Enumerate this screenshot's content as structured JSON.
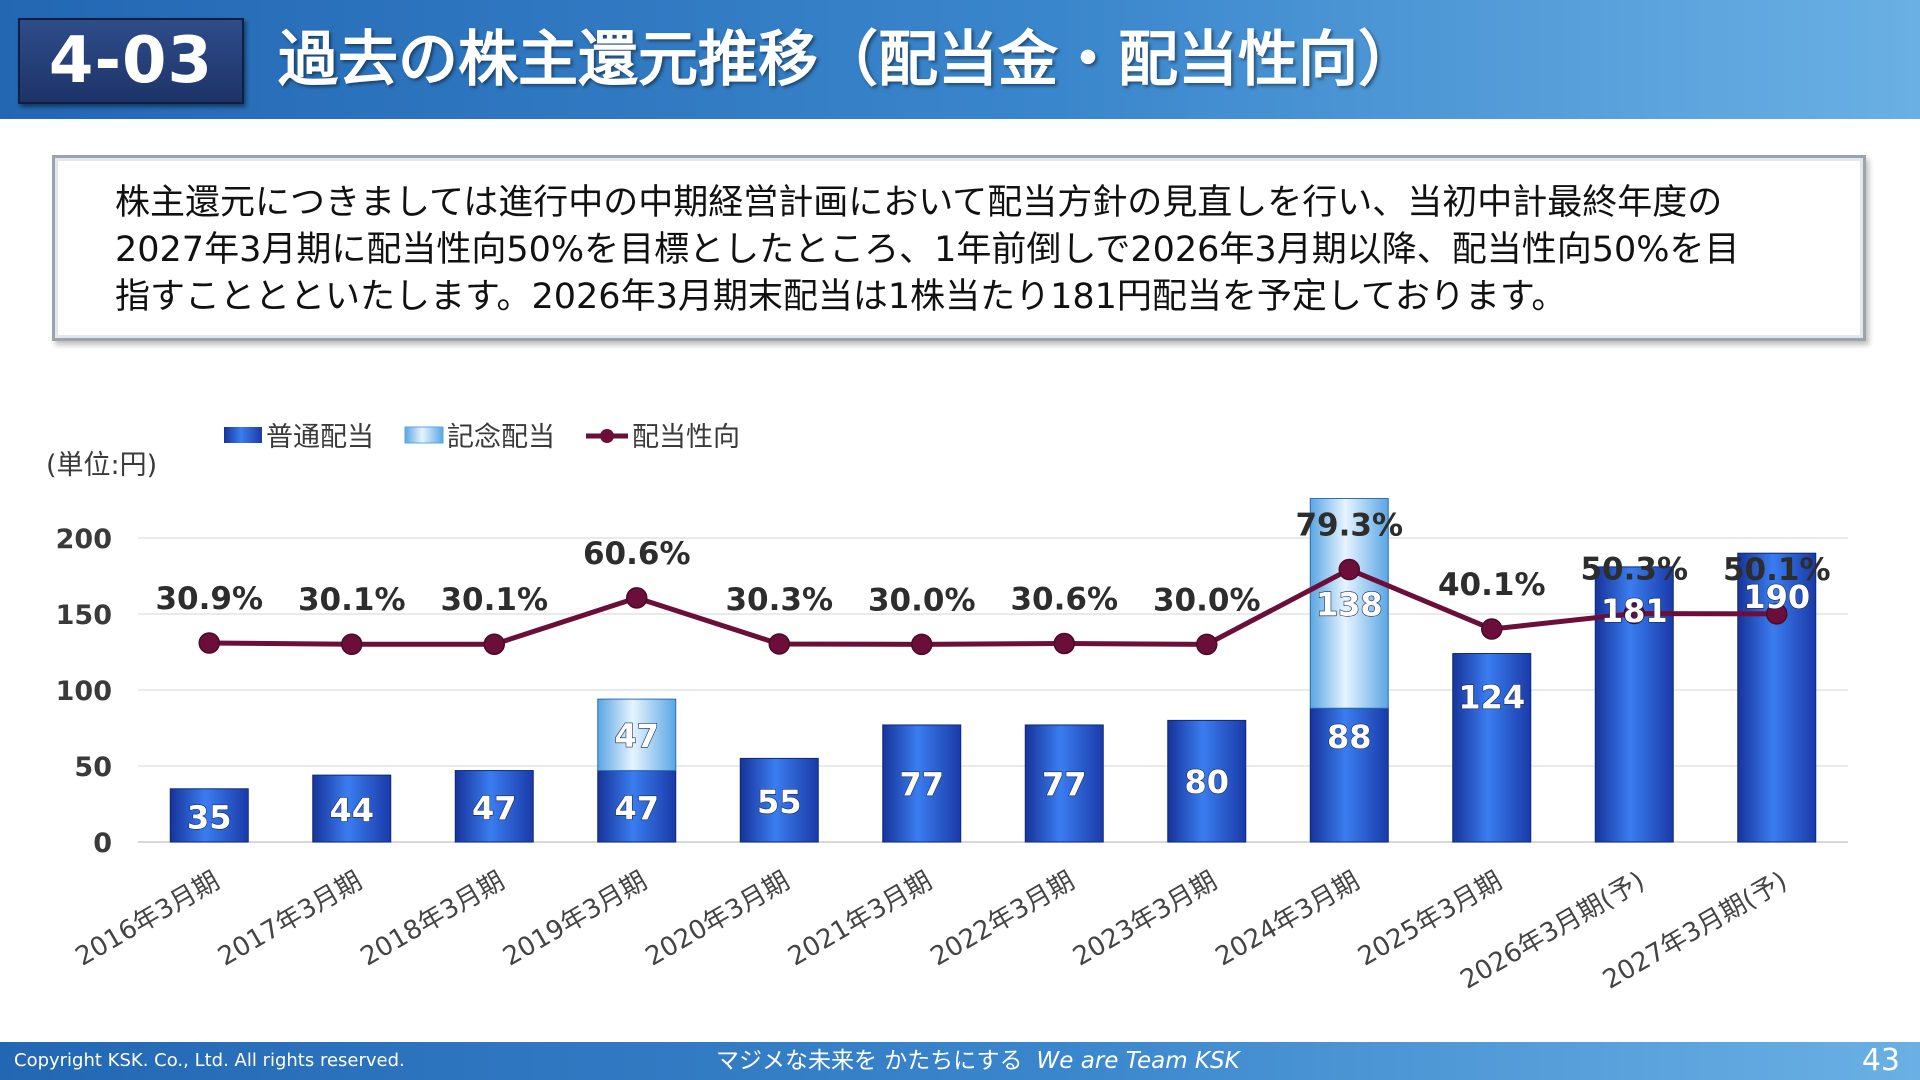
{
  "header": {
    "section": "4-03",
    "title": "過去の株主還元推移（配当金・配当性向）"
  },
  "summary": [
    "株主還元につきましては進行中の中期経営計画において配当方針の見直しを行い、当初中計最終年度の",
    "2027年3月期に配当性向50%を目標としたところ、1年前倒しで2026年3月期以降、配当性向50%を目",
    "指すこととといたします。2026年3月期末配当は1株当たり181円配当を予定しております。"
  ],
  "chart_data": {
    "type": "bar",
    "unit_label": "(単位:円)",
    "legend_position": "top-left",
    "categories": [
      "2016年3月期",
      "2017年3月期",
      "2018年3月期",
      "2019年3月期",
      "2020年3月期",
      "2021年3月期",
      "2022年3月期",
      "2023年3月期",
      "2024年3月期",
      "2025年3月期",
      "2026年3月期(予)",
      "2027年3月期(予)"
    ],
    "series": [
      {
        "name": "普通配当",
        "type": "bar",
        "stacked": true,
        "color": "#1f4fd6",
        "values": [
          35,
          44,
          47,
          47,
          55,
          77,
          77,
          80,
          88,
          124,
          181,
          190
        ],
        "labels": [
          "35",
          "44",
          "47",
          "47",
          "55",
          "77",
          "77",
          "80",
          "88",
          "124",
          "181",
          "190"
        ]
      },
      {
        "name": "記念配当",
        "type": "bar",
        "stacked": true,
        "color": "#7fc0ee",
        "values": [
          0,
          0,
          0,
          47,
          0,
          0,
          0,
          0,
          138,
          0,
          0,
          0
        ],
        "labels": [
          "",
          "",
          "",
          "47",
          "",
          "",
          "",
          "",
          "138",
          "",
          "",
          ""
        ]
      },
      {
        "name": "配当性向",
        "type": "line",
        "color": "#6b0f3a",
        "values": [
          30.9,
          30.1,
          30.1,
          60.6,
          30.3,
          30.0,
          30.6,
          30.0,
          79.3,
          40.1,
          50.3,
          50.1
        ],
        "labels": [
          "30.9%",
          "30.1%",
          "30.1%",
          "60.6%",
          "30.3%",
          "30.0%",
          "30.6%",
          "30.0%",
          "79.3%",
          "40.1%",
          "50.3%",
          "50.1%"
        ]
      }
    ],
    "y_axis": {
      "min": 0,
      "max": 200,
      "ticks": [
        "0",
        "50",
        "100",
        "150",
        "200"
      ]
    },
    "payout_axis_hidden": {
      "min": -100,
      "max": 100
    },
    "grid": true
  },
  "footer": {
    "copyright": "Copyright  KSK. Co., Ltd. All rights reserved.",
    "slogan_jp": "マジメな未来を かたちにする",
    "slogan_en": "We are Team KSK",
    "page": "43"
  }
}
